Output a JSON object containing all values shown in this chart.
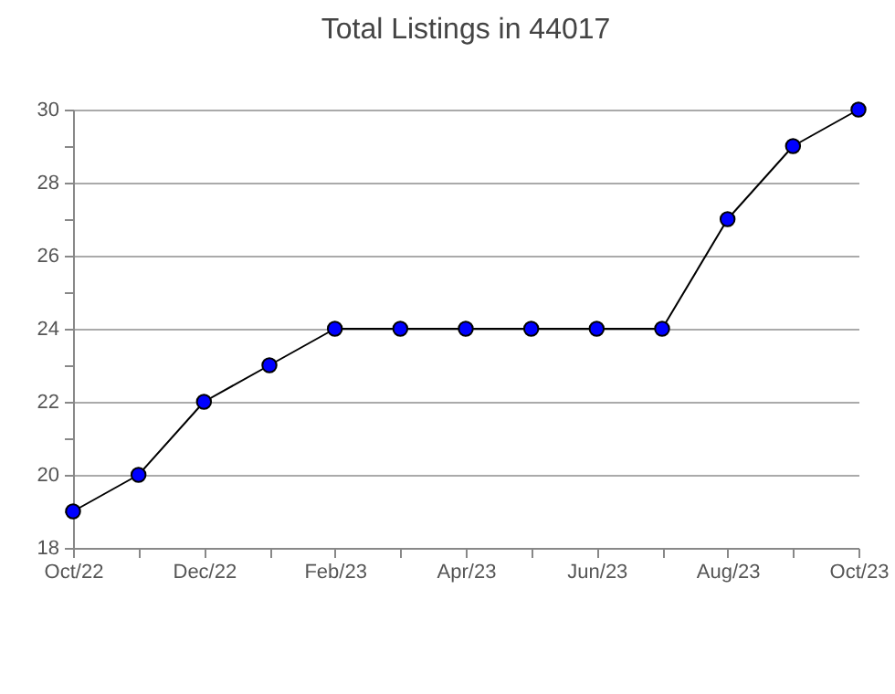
{
  "chart_data": {
    "type": "line",
    "title": "Total Listings in 44017",
    "categories": [
      "Oct/22",
      null,
      "Dec/22",
      null,
      "Feb/23",
      null,
      "Apr/23",
      null,
      "Jun/23",
      null,
      "Aug/23",
      null,
      "Oct/23"
    ],
    "series": [
      {
        "color": "#0000ff",
        "values": [
          19,
          20,
          22,
          23,
          24,
          24,
          24,
          24,
          24,
          24,
          27,
          29,
          30
        ]
      }
    ],
    "ylim": [
      18,
      30
    ],
    "yticks": [
      18,
      {
        "value": 19,
        "label": null
      },
      20,
      {
        "value": 21,
        "label": null
      },
      22,
      {
        "value": 23,
        "label": null
      },
      24,
      {
        "value": 25,
        "label": null
      },
      26,
      {
        "value": 27,
        "label": null
      },
      28,
      {
        "value": 29,
        "label": null
      },
      30
    ],
    "grid": "y",
    "marker": "circle",
    "line_style": "solid"
  }
}
